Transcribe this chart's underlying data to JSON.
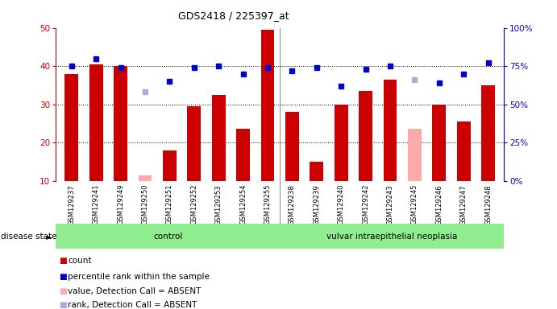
{
  "title": "GDS2418 / 225397_at",
  "samples": [
    "GSM129237",
    "GSM129241",
    "GSM129249",
    "GSM129250",
    "GSM129251",
    "GSM129252",
    "GSM129253",
    "GSM129254",
    "GSM129255",
    "GSM129238",
    "GSM129239",
    "GSM129240",
    "GSM129242",
    "GSM129243",
    "GSM129245",
    "GSM129246",
    "GSM129247",
    "GSM129248"
  ],
  "bar_values": [
    38.0,
    40.5,
    40.0,
    11.5,
    18.0,
    29.5,
    32.5,
    23.5,
    49.5,
    28.0,
    15.0,
    30.0,
    33.5,
    36.5,
    23.5,
    30.0,
    25.5,
    35.0
  ],
  "bar_colors": [
    "#cc0000",
    "#cc0000",
    "#cc0000",
    "#ffaaaa",
    "#cc0000",
    "#cc0000",
    "#cc0000",
    "#cc0000",
    "#cc0000",
    "#cc0000",
    "#cc0000",
    "#cc0000",
    "#cc0000",
    "#cc0000",
    "#ffaaaa",
    "#cc0000",
    "#cc0000",
    "#cc0000"
  ],
  "dot_values_pct": [
    75,
    80,
    74,
    58,
    65,
    74,
    75,
    70,
    74,
    72,
    74,
    62,
    73,
    75,
    66,
    64,
    70,
    77
  ],
  "dot_colors": [
    "#0000cc",
    "#0000cc",
    "#0000cc",
    "#aaaadd",
    "#0000cc",
    "#0000cc",
    "#0000cc",
    "#0000cc",
    "#0000cc",
    "#0000cc",
    "#0000cc",
    "#0000cc",
    "#0000cc",
    "#0000cc",
    "#aaaadd",
    "#0000cc",
    "#0000cc",
    "#0000cc"
  ],
  "group_sep_idx": 8.5,
  "group_labels": [
    "control",
    "vulvar intraepithelial neoplasia"
  ],
  "ylim_left": [
    10,
    50
  ],
  "ylim_right": [
    0,
    100
  ],
  "yticks_left": [
    10,
    20,
    30,
    40,
    50
  ],
  "yticks_right": [
    0,
    25,
    50,
    75,
    100
  ],
  "red_color": "#cc0000",
  "blue_color": "#0000cc",
  "light_red": "#ffaaaa",
  "light_blue": "#aaaadd",
  "green_bg": "#90ee90",
  "gray_bg": "#d0d0d0",
  "legend_items": [
    {
      "label": "count",
      "color": "#cc0000"
    },
    {
      "label": "percentile rank within the sample",
      "color": "#0000cc"
    },
    {
      "label": "value, Detection Call = ABSENT",
      "color": "#ffaaaa"
    },
    {
      "label": "rank, Detection Call = ABSENT",
      "color": "#aaaadd"
    }
  ]
}
